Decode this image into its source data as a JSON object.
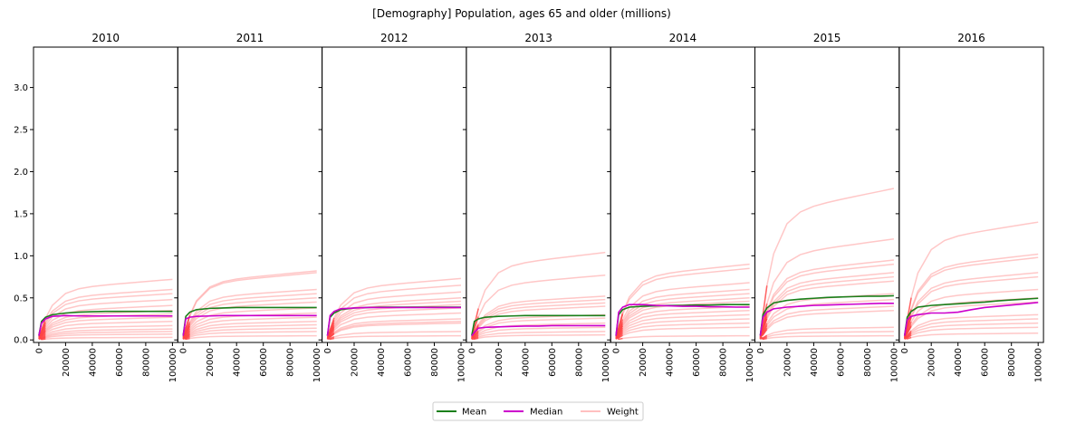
{
  "figure": {
    "suptitle": "[Demography] Population, ages 65 and older (millions)"
  },
  "legend": {
    "entries": [
      {
        "label": "Mean",
        "color": "#1a7f1a"
      },
      {
        "label": "Median",
        "color": "#cc00cc"
      },
      {
        "label": "Weight",
        "color": "#ffb0b0"
      }
    ],
    "placement": "bottom-center"
  },
  "chart_data": {
    "type": "line",
    "layout": "small-multiples",
    "shared_y": true,
    "ylim": [
      -0.03,
      3.48
    ],
    "yticks": [
      0.0,
      0.5,
      1.0,
      1.5,
      2.0,
      2.5,
      3.0
    ],
    "ytick_labels": [
      "0.0",
      "0.5",
      "1.0",
      "1.5",
      "2.0",
      "2.5",
      "3.0"
    ],
    "xlim": [
      -4000,
      104000
    ],
    "xticks": [
      0,
      20000,
      40000,
      60000,
      80000,
      100000
    ],
    "xtick_labels": [
      "0",
      "20000",
      "40000",
      "60000",
      "80000",
      "100000"
    ],
    "x": [
      0,
      2000,
      5000,
      10000,
      20000,
      30000,
      40000,
      50000,
      60000,
      70000,
      80000,
      90000,
      100000
    ],
    "grid": false,
    "colors": {
      "mean": "#1a7f1a",
      "median": "#cc00cc",
      "weight": "#ff9999",
      "weight_start": "#ff2020"
    },
    "panels": [
      {
        "title": "2010",
        "weights": [
          0.72,
          0.6,
          0.55,
          0.48,
          0.41,
          0.35,
          0.31,
          0.27,
          0.22,
          0.17,
          0.13,
          0.1,
          0.07,
          0.03
        ],
        "mean": [
          0.05,
          0.22,
          0.27,
          0.3,
          0.32,
          0.33,
          0.335,
          0.34,
          0.34,
          0.34,
          0.34,
          0.34,
          0.34
        ],
        "median": [
          0.05,
          0.2,
          0.25,
          0.28,
          0.29,
          0.285,
          0.285,
          0.285,
          0.285,
          0.285,
          0.285,
          0.285,
          0.285
        ]
      },
      {
        "title": "2011",
        "weights": [
          0.82,
          0.8,
          0.6,
          0.55,
          0.5,
          0.45,
          0.38,
          0.32,
          0.27,
          0.22,
          0.18,
          0.14,
          0.1,
          0.05
        ],
        "mean": [
          0.05,
          0.28,
          0.33,
          0.36,
          0.375,
          0.38,
          0.385,
          0.385,
          0.385,
          0.385,
          0.385,
          0.385,
          0.385
        ],
        "median": [
          0.05,
          0.25,
          0.27,
          0.28,
          0.285,
          0.29,
          0.29,
          0.29,
          0.29,
          0.29,
          0.29,
          0.29,
          0.29
        ]
      },
      {
        "title": "2012",
        "weights": [
          0.73,
          0.65,
          0.57,
          0.5,
          0.46,
          0.42,
          0.38,
          0.32,
          0.25,
          0.22,
          0.2,
          0.1,
          0.05
        ],
        "mean": [
          0.05,
          0.27,
          0.32,
          0.36,
          0.38,
          0.385,
          0.39,
          0.39,
          0.39,
          0.39,
          0.39,
          0.39,
          0.39
        ],
        "median": [
          0.05,
          0.29,
          0.34,
          0.37,
          0.38,
          0.385,
          0.385,
          0.385,
          0.385,
          0.385,
          0.385,
          0.385,
          0.385
        ]
      },
      {
        "title": "2013",
        "weights": [
          1.04,
          0.77,
          0.52,
          0.48,
          0.44,
          0.4,
          0.3,
          0.26,
          0.2,
          0.15,
          0.1,
          0.06
        ],
        "mean": [
          0.05,
          0.22,
          0.25,
          0.27,
          0.28,
          0.285,
          0.29,
          0.29,
          0.29,
          0.29,
          0.29,
          0.29,
          0.29
        ],
        "median": [
          0.05,
          0.09,
          0.14,
          0.15,
          0.155,
          0.16,
          0.165,
          0.165,
          0.17,
          0.17,
          0.17,
          0.17,
          0.17
        ]
      },
      {
        "title": "2014",
        "weights": [
          0.9,
          0.85,
          0.68,
          0.6,
          0.55,
          0.5,
          0.46,
          0.4,
          0.35,
          0.3,
          0.25,
          0.2,
          0.15,
          0.05
        ],
        "mean": [
          0.05,
          0.3,
          0.36,
          0.39,
          0.4,
          0.405,
          0.41,
          0.41,
          0.415,
          0.415,
          0.42,
          0.42,
          0.42
        ],
        "median": [
          0.05,
          0.33,
          0.39,
          0.42,
          0.42,
          0.41,
          0.405,
          0.4,
          0.4,
          0.395,
          0.395,
          0.39,
          0.39
        ]
      },
      {
        "title": "2015",
        "weights": [
          1.8,
          1.2,
          0.95,
          0.9,
          0.8,
          0.75,
          0.7,
          0.55,
          0.48,
          0.4,
          0.35,
          0.15,
          0.1,
          0.05
        ],
        "mean": [
          0.05,
          0.3,
          0.38,
          0.44,
          0.47,
          0.485,
          0.495,
          0.505,
          0.51,
          0.515,
          0.52,
          0.52,
          0.525
        ],
        "median": [
          0.05,
          0.27,
          0.33,
          0.37,
          0.39,
          0.4,
          0.41,
          0.415,
          0.42,
          0.425,
          0.43,
          0.435,
          0.435
        ]
      },
      {
        "title": "2016",
        "weights": [
          1.4,
          1.02,
          0.98,
          0.8,
          0.75,
          0.6,
          0.5,
          0.45,
          0.3,
          0.25,
          0.2,
          0.15,
          0.08
        ],
        "mean": [
          0.05,
          0.27,
          0.34,
          0.39,
          0.41,
          0.42,
          0.43,
          0.44,
          0.45,
          0.465,
          0.475,
          0.485,
          0.495
        ],
        "median": [
          0.05,
          0.24,
          0.28,
          0.3,
          0.32,
          0.32,
          0.33,
          0.36,
          0.385,
          0.4,
          0.415,
          0.43,
          0.445
        ]
      }
    ]
  }
}
